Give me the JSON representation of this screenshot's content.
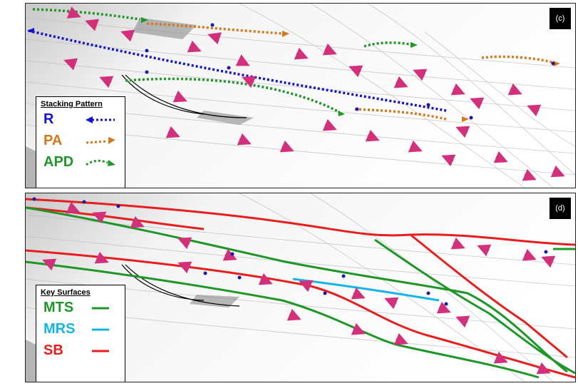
{
  "panels": {
    "c": {
      "label": "(c)",
      "legend": {
        "title": "Stacking Pattern",
        "items": [
          {
            "label": "R",
            "color": "#1414c8",
            "style": "dotted-arrow-left"
          },
          {
            "label": "PA",
            "color": "#d2781e",
            "style": "dotted-arrow-right"
          },
          {
            "label": "APD",
            "color": "#1e9628",
            "style": "dotted-arrow-curved"
          }
        ]
      }
    },
    "d": {
      "label": "(d)",
      "legend": {
        "title": "Key Surfaces",
        "items": [
          {
            "label": "MTS",
            "color": "#1e9628",
            "style": "solid-line"
          },
          {
            "label": "MRS",
            "color": "#14b4e6",
            "style": "solid-line"
          },
          {
            "label": "SB",
            "color": "#e61e1e",
            "style": "solid-line"
          }
        ]
      }
    }
  },
  "colors": {
    "paleo_arrow": "#d2307a",
    "dot": "#1a1aa0",
    "trace": "#000000"
  }
}
